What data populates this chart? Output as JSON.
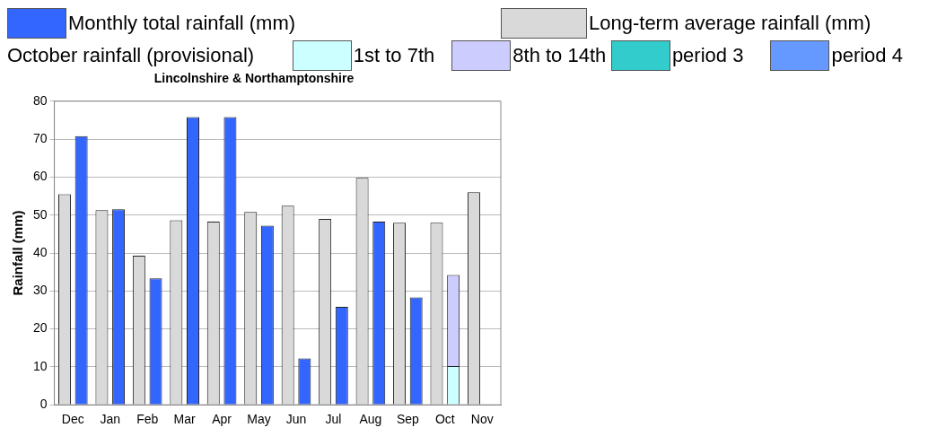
{
  "chart_data": {
    "type": "bar",
    "title": "Lincolnshire & Northamptonshire",
    "ylabel": "Rainfall (mm)",
    "legend_title": "October rainfall (provisional)",
    "categories": [
      "Dec",
      "Jan",
      "Feb",
      "Mar",
      "Apr",
      "May",
      "Jun",
      "Jul",
      "Aug",
      "Sep",
      "Oct",
      "Nov"
    ],
    "series": [
      {
        "name": "Long-term average rainfall (mm)",
        "color": "#d9d9d9",
        "values": [
          55.5,
          51.3,
          39.3,
          48.6,
          48.3,
          50.8,
          52.5,
          49,
          59.8,
          48,
          48,
          56
        ]
      },
      {
        "name": "Monthly total rainfall (mm)",
        "color": "#3366ff",
        "values": [
          70.8,
          51.5,
          33.3,
          75.8,
          75.8,
          47.2,
          12.2,
          25.8,
          48.3,
          28.3,
          null,
          null
        ]
      },
      {
        "name": "1st to 7th",
        "color": "#ccffff",
        "values": [
          null,
          null,
          null,
          null,
          null,
          null,
          null,
          null,
          null,
          null,
          10.2,
          null
        ]
      },
      {
        "name": "8th to 14th",
        "color": "#ccccff",
        "values": [
          null,
          null,
          null,
          null,
          null,
          null,
          null,
          null,
          null,
          null,
          24,
          null
        ],
        "base": [
          null,
          null,
          null,
          null,
          null,
          null,
          null,
          null,
          null,
          null,
          10.2,
          null
        ]
      },
      {
        "name": "period 3",
        "color": "#33cccc",
        "values": [
          null,
          null,
          null,
          null,
          null,
          null,
          null,
          null,
          null,
          null,
          null,
          null
        ]
      },
      {
        "name": "period 4",
        "color": "#6699ff",
        "values": [
          null,
          null,
          null,
          null,
          null,
          null,
          null,
          null,
          null,
          null,
          null,
          null
        ]
      }
    ],
    "ylim": [
      0,
      80
    ],
    "yticks": [
      0,
      10,
      20,
      30,
      40,
      50,
      60,
      70,
      80
    ],
    "grid": "y",
    "legend": "top"
  }
}
